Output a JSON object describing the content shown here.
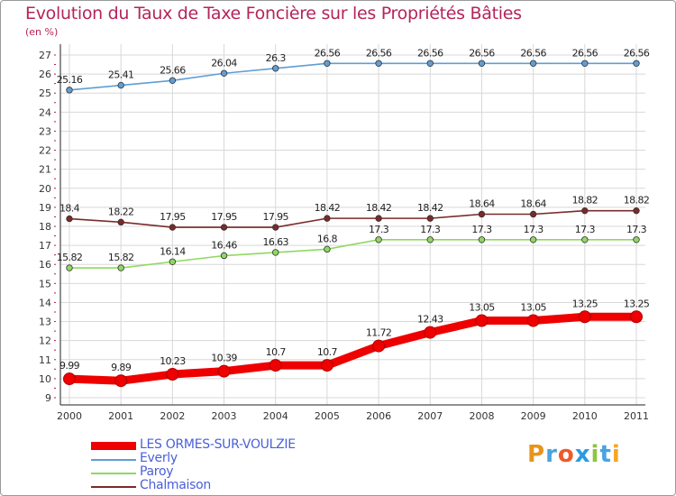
{
  "title": "Evolution du Taux de Taxe Foncière sur les Propriétés Bâties",
  "unit_label": "(en %)",
  "brand": "Proxiti",
  "colors": {
    "title": "#b5245a",
    "legend_text": "#4a5fd8",
    "grid": "#d8d8d8",
    "axis": "#222222"
  },
  "chart_data": {
    "type": "line",
    "title": "Evolution du Taux de Taxe Foncière sur les Propriétés Bâties",
    "xlabel": "",
    "ylabel": "(en %)",
    "ylim": [
      9,
      27
    ],
    "yticks": [
      9,
      10,
      11,
      12,
      13,
      14,
      15,
      16,
      17,
      18,
      19,
      20,
      21,
      22,
      23,
      24,
      25,
      26,
      27
    ],
    "grid": true,
    "categories": [
      "2000",
      "2001",
      "2002",
      "2003",
      "2004",
      "2005",
      "2006",
      "2007",
      "2008",
      "2009",
      "2010",
      "2011"
    ],
    "series": [
      {
        "name": "LES ORMES-SUR-VOULZIE",
        "color": "#ee0000",
        "thick": true,
        "values": [
          9.99,
          9.89,
          10.23,
          10.39,
          10.7,
          10.7,
          11.72,
          12.43,
          13.05,
          13.05,
          13.25,
          13.25
        ],
        "labels": [
          "9.99",
          "9.89",
          "10.23",
          "10.39",
          "10.7",
          "10.7",
          "11.72",
          "12.43",
          "13.05",
          "13.05",
          "13.25",
          "13.25"
        ]
      },
      {
        "name": "Everly",
        "color": "#5e9ed4",
        "thick": false,
        "values": [
          25.16,
          25.41,
          25.66,
          26.04,
          26.3,
          26.56,
          26.56,
          26.56,
          26.56,
          26.56,
          26.56,
          26.56
        ],
        "labels": [
          "25.16",
          "25.41",
          "25.66",
          "26.04",
          "26.3",
          "26.56",
          "26.56",
          "26.56",
          "26.56",
          "26.56",
          "26.56",
          "26.56"
        ]
      },
      {
        "name": "Paroy",
        "color": "#90d860",
        "thick": false,
        "values": [
          15.82,
          15.82,
          16.14,
          16.46,
          16.63,
          16.8,
          17.3,
          17.3,
          17.3,
          17.3,
          17.3,
          17.3
        ],
        "labels": [
          "15.82",
          "15.82",
          "16.14",
          "16.46",
          "16.63",
          "16.8",
          "17.3",
          "17.3",
          "17.3",
          "17.3",
          "17.3",
          "17.3"
        ]
      },
      {
        "name": "Chalmaison",
        "color": "#7a2a2a",
        "thick": false,
        "values": [
          18.4,
          18.22,
          17.95,
          17.95,
          17.95,
          18.42,
          18.42,
          18.42,
          18.64,
          18.64,
          18.82,
          18.82
        ],
        "labels": [
          "18.4",
          "18.22",
          "17.95",
          "17.95",
          "17.95",
          "18.42",
          "18.42",
          "18.42",
          "18.64",
          "18.64",
          "18.82",
          "18.82"
        ]
      }
    ]
  }
}
